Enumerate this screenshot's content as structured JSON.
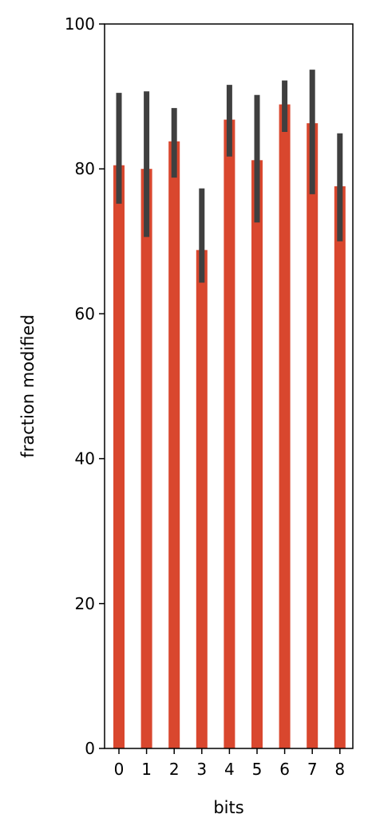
{
  "chart_data": {
    "type": "bar",
    "title": "",
    "xlabel": "bits",
    "ylabel": "fraction modified",
    "categories": [
      "0",
      "1",
      "2",
      "3",
      "4",
      "5",
      "6",
      "7",
      "8"
    ],
    "values": [
      80.5,
      80.0,
      83.8,
      68.8,
      86.8,
      81.2,
      88.9,
      86.3,
      77.6
    ],
    "error_low": [
      75.2,
      70.6,
      78.8,
      64.3,
      81.7,
      72.6,
      85.1,
      76.5,
      70.0
    ],
    "error_high": [
      90.5,
      90.7,
      88.4,
      77.3,
      91.6,
      90.2,
      92.2,
      93.7,
      84.9
    ],
    "ylim": [
      0,
      100
    ],
    "yticks": [
      "0",
      "20",
      "40",
      "60",
      "80",
      "100"
    ],
    "grid": false,
    "legend": "none",
    "colors": {
      "bar": "#d9472e",
      "error_bar": "#3f3f3f",
      "axis": "#000000"
    }
  }
}
